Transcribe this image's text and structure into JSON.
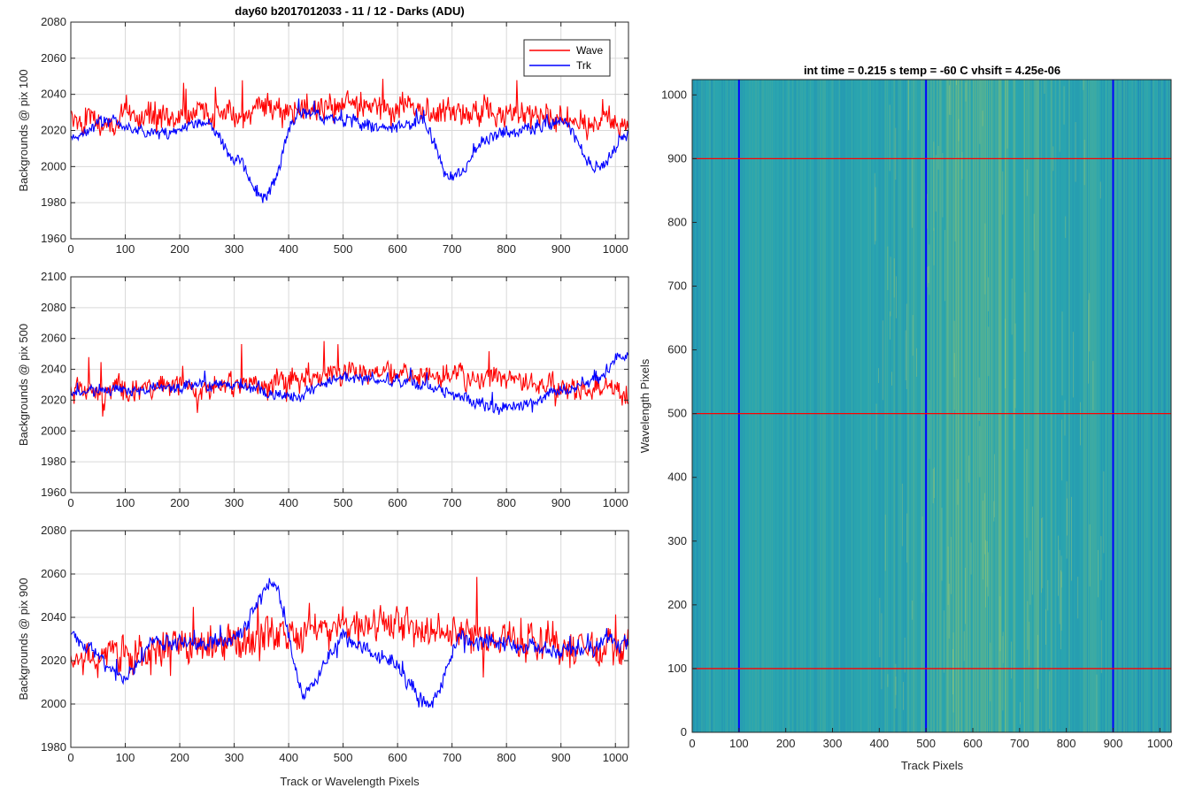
{
  "colors": {
    "wave": "#ff0000",
    "trk": "#0000ff",
    "grid": "#d9d9d9",
    "axis": "#262626",
    "image_base": "#2aa5b0"
  },
  "figure_title": "day60 b2017012033 - 11 / 12 - Darks (ADU)",
  "left_xlabel": "Track or Wavelength Pixels",
  "legend": {
    "placement": "top-right",
    "entries": [
      "Wave",
      "Trk"
    ]
  },
  "chart_data": [
    {
      "type": "line",
      "ylabel": "Backgrounds @ pix 100",
      "xlim": [
        0,
        1024
      ],
      "ylim": [
        1960,
        2080
      ],
      "xticks": [
        0,
        100,
        200,
        300,
        400,
        500,
        600,
        700,
        800,
        900,
        1000
      ],
      "yticks": [
        1960,
        1980,
        2000,
        2020,
        2040,
        2060,
        2080
      ],
      "grid": true,
      "series": [
        {
          "name": "Wave",
          "color": "#ff0000",
          "mean": 2028,
          "noise": 8,
          "spike": 20,
          "anchors": [
            [
              0,
              2025
            ],
            [
              200,
              2028
            ],
            [
              500,
              2033
            ],
            [
              700,
              2030
            ],
            [
              1024,
              2025
            ]
          ]
        },
        {
          "name": "Trk",
          "color": "#0000ff",
          "mean": 2020,
          "noise": 4,
          "spike": 8,
          "anchors": [
            [
              0,
              2015
            ],
            [
              60,
              2025
            ],
            [
              150,
              2018
            ],
            [
              250,
              2025
            ],
            [
              300,
              2005
            ],
            [
              355,
              1983
            ],
            [
              420,
              2030
            ],
            [
              500,
              2025
            ],
            [
              580,
              2022
            ],
            [
              640,
              2025
            ],
            [
              700,
              1995
            ],
            [
              780,
              2018
            ],
            [
              900,
              2025
            ],
            [
              970,
              2000
            ],
            [
              1024,
              2018
            ]
          ]
        }
      ]
    },
    {
      "type": "line",
      "ylabel": "Backgrounds @ pix 500",
      "xlim": [
        0,
        1024
      ],
      "ylim": [
        1960,
        2100
      ],
      "xticks": [
        0,
        100,
        200,
        300,
        400,
        500,
        600,
        700,
        800,
        900,
        1000
      ],
      "yticks": [
        1960,
        1980,
        2000,
        2020,
        2040,
        2060,
        2080,
        2100
      ],
      "grid": true,
      "series": [
        {
          "name": "Wave",
          "color": "#ff0000",
          "mean": 2028,
          "noise": 8,
          "spike": 22,
          "anchors": [
            [
              0,
              2025
            ],
            [
              300,
              2030
            ],
            [
              550,
              2038
            ],
            [
              700,
              2035
            ],
            [
              1024,
              2025
            ]
          ]
        },
        {
          "name": "Trk",
          "color": "#0000ff",
          "mean": 2028,
          "noise": 4,
          "spike": 8,
          "anchors": [
            [
              0,
              2025
            ],
            [
              300,
              2030
            ],
            [
              400,
              2022
            ],
            [
              500,
              2035
            ],
            [
              600,
              2032
            ],
            [
              800,
              2015
            ],
            [
              900,
              2025
            ],
            [
              950,
              2032
            ],
            [
              1024,
              2050
            ]
          ]
        }
      ]
    },
    {
      "type": "line",
      "ylabel": "Backgrounds @ pix 900",
      "xlim": [
        0,
        1024
      ],
      "ylim": [
        1980,
        2080
      ],
      "xticks": [
        0,
        100,
        200,
        300,
        400,
        500,
        600,
        700,
        800,
        900,
        1000
      ],
      "yticks": [
        1980,
        2000,
        2020,
        2040,
        2060,
        2080
      ],
      "grid": true,
      "series": [
        {
          "name": "Wave",
          "color": "#ff0000",
          "mean": 2028,
          "noise": 9,
          "spike": 20,
          "anchors": [
            [
              0,
              2020
            ],
            [
              200,
              2025
            ],
            [
              400,
              2032
            ],
            [
              550,
              2038
            ],
            [
              700,
              2032
            ],
            [
              1024,
              2025
            ]
          ]
        },
        {
          "name": "Trk",
          "color": "#0000ff",
          "mean": 2024,
          "noise": 4,
          "spike": 8,
          "anchors": [
            [
              0,
              2032
            ],
            [
              100,
              2012
            ],
            [
              150,
              2028
            ],
            [
              300,
              2030
            ],
            [
              370,
              2055
            ],
            [
              430,
              2005
            ],
            [
              500,
              2030
            ],
            [
              580,
              2020
            ],
            [
              660,
              2000
            ],
            [
              720,
              2030
            ],
            [
              800,
              2028
            ],
            [
              900,
              2025
            ],
            [
              1024,
              2028
            ]
          ]
        }
      ]
    },
    {
      "type": "heatmap",
      "title": "int time = 0.215 s   temp = -60 C   vhsift = 4.25e-06",
      "xlabel": "Track Pixels",
      "ylabel": "Wavelength Pixels",
      "xlim": [
        0,
        1024
      ],
      "ylim": [
        0,
        1024
      ],
      "xticks": [
        0,
        100,
        200,
        300,
        400,
        500,
        600,
        700,
        800,
        900,
        1000
      ],
      "yticks": [
        0,
        100,
        200,
        300,
        400,
        500,
        600,
        700,
        800,
        900,
        1000
      ],
      "vertical_lines": [
        100,
        500,
        900
      ],
      "horizontal_lines": [
        100,
        500,
        900
      ],
      "vertical_line_color": "#0000ff",
      "horizontal_line_color": "#ff0000"
    }
  ]
}
